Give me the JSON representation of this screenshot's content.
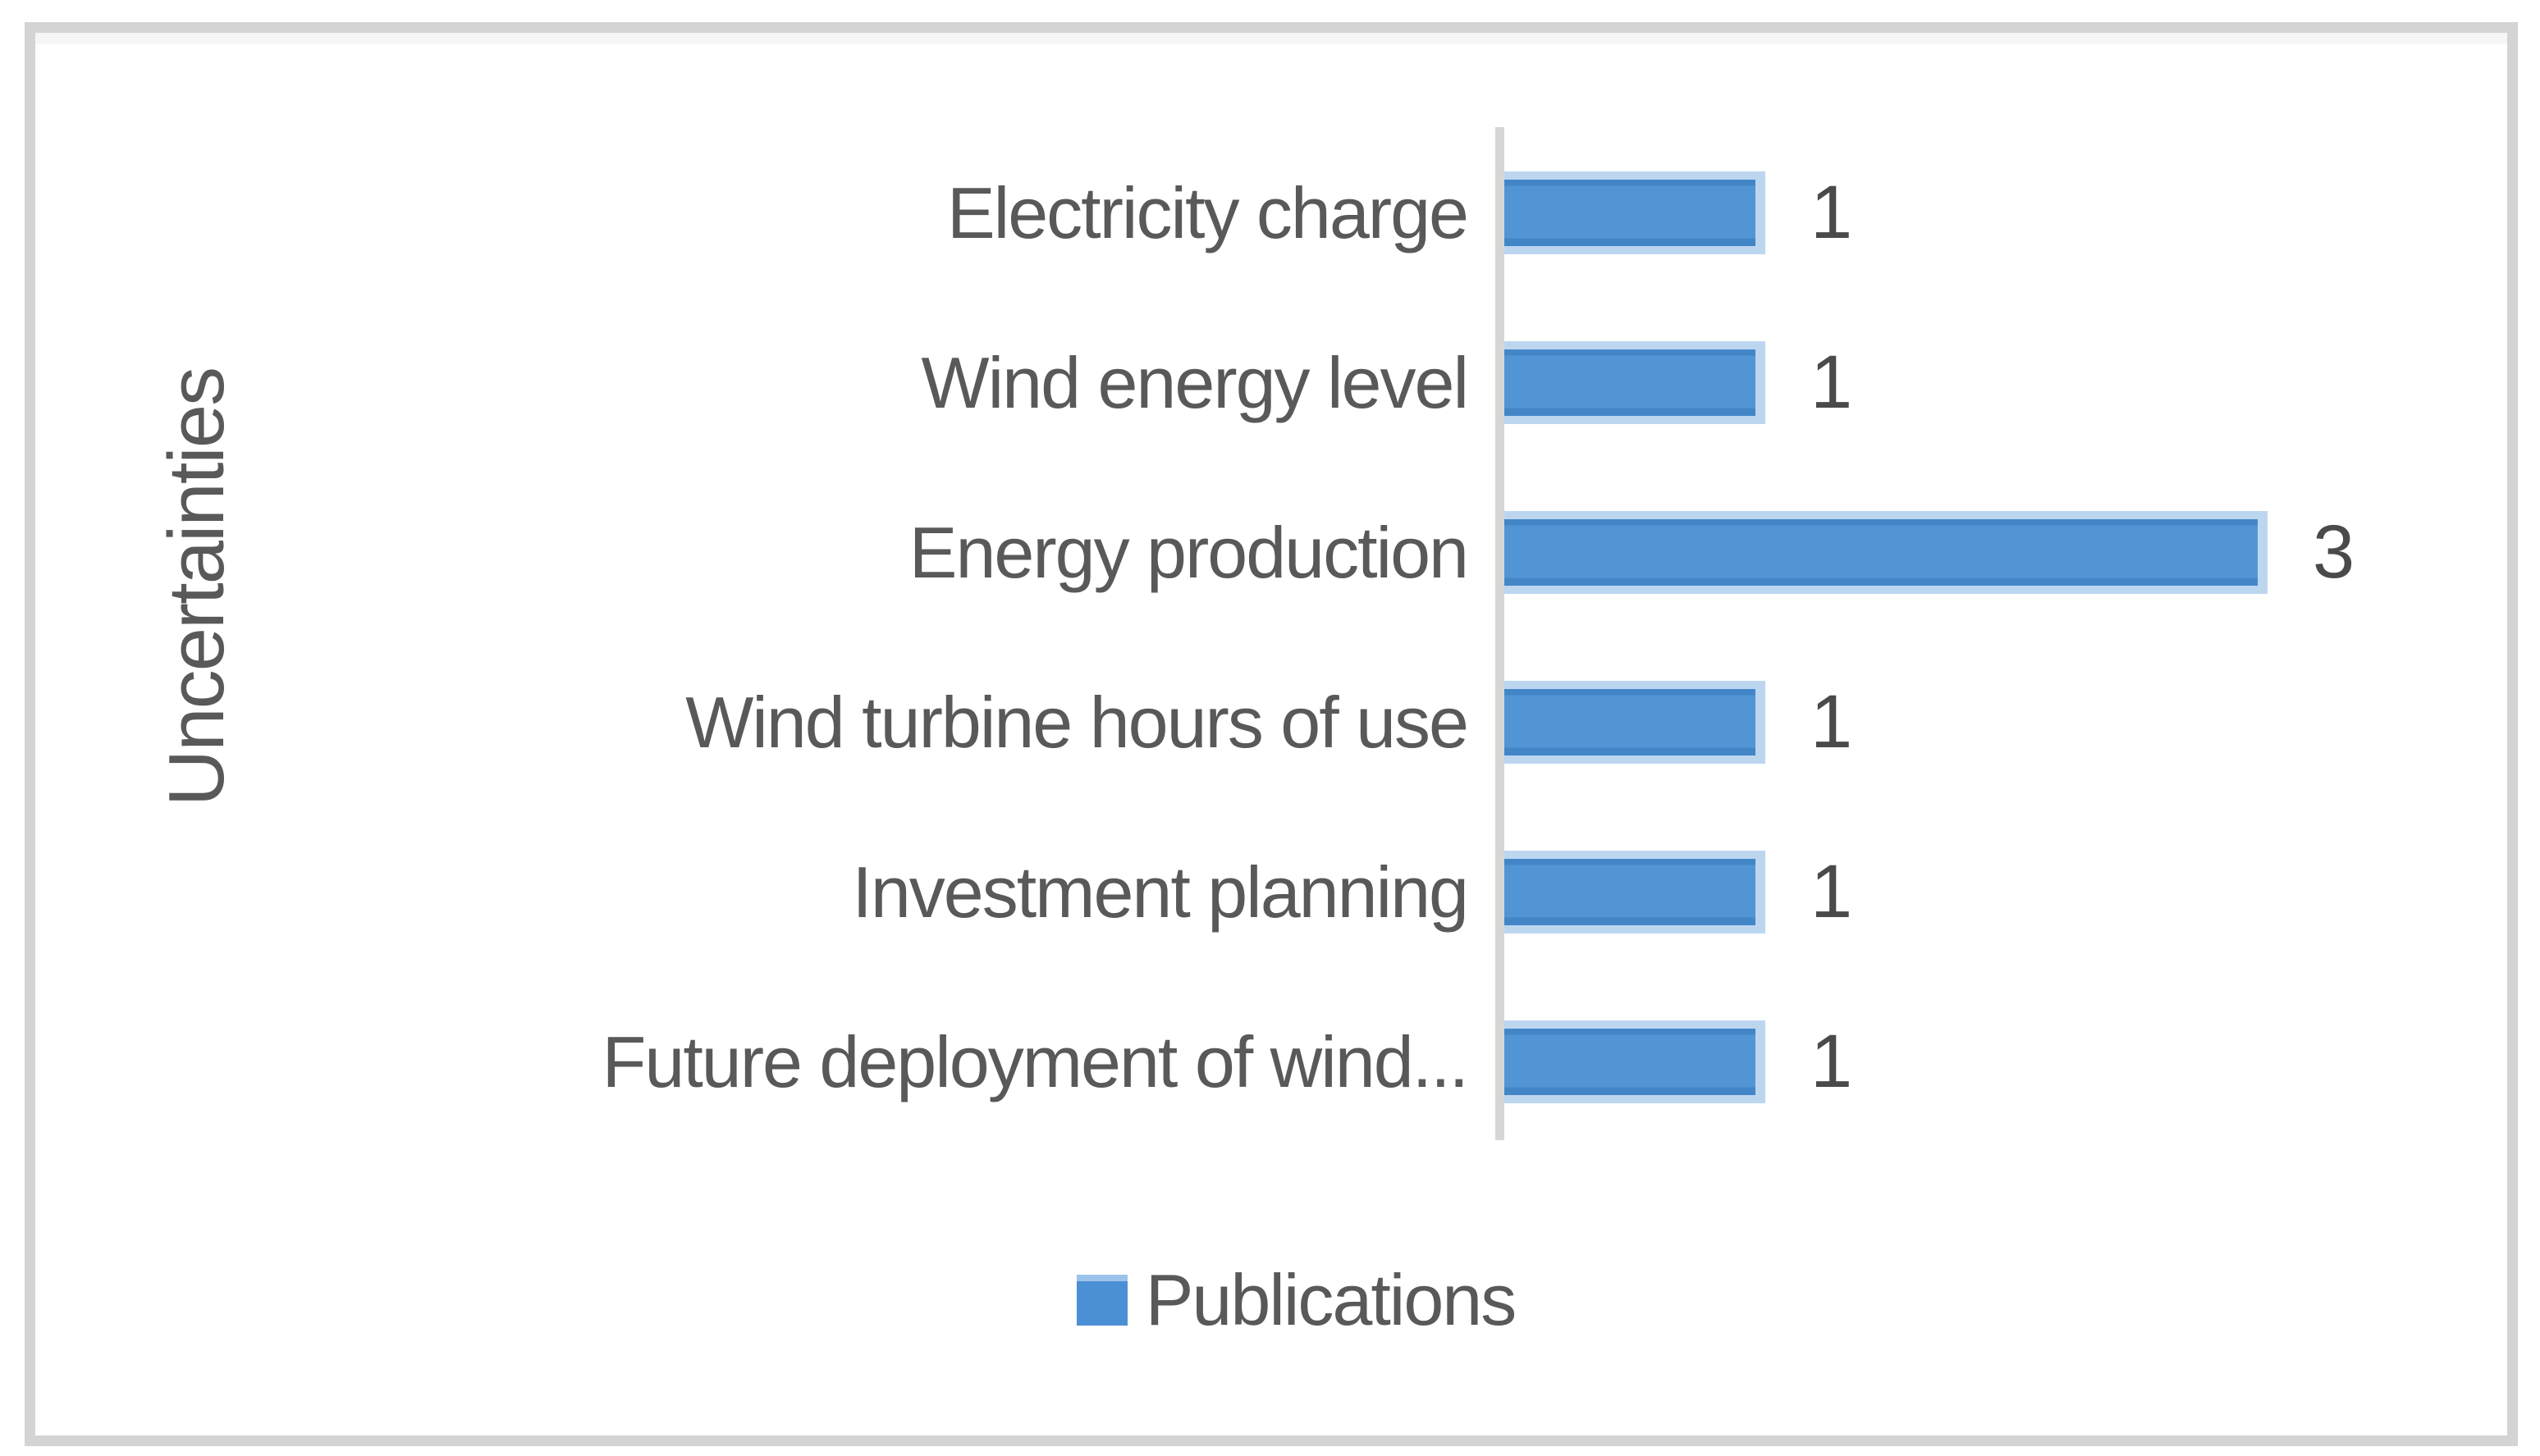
{
  "chart_data": {
    "type": "bar",
    "orientation": "horizontal",
    "title": "",
    "categories": [
      "Electricity charge",
      "Wind energy level",
      "Energy production",
      "Wind turbine hours of use",
      "Investment planning",
      "Future deployment of wind..."
    ],
    "values": [
      1,
      1,
      3,
      1,
      1,
      1
    ],
    "data_labels": [
      "1",
      "1",
      "3",
      "1",
      "1",
      "1"
    ],
    "series": [
      {
        "name": "Publications",
        "values": [
          1,
          1,
          3,
          1,
          1,
          1
        ]
      }
    ],
    "xlabel": "",
    "ylabel": "Uncertainties",
    "xlim": [
      0,
      3
    ],
    "grid": false,
    "legend_position": "bottom",
    "colors": {
      "bar_fill": "#5295d4",
      "bar_edge": "#4286c8",
      "bar_halo": "#bdd6f0",
      "axis_line": "#d6d6d4",
      "label_text": "#595959",
      "value_text": "#4a4a4a",
      "frame_border": "#d4d4d4"
    }
  },
  "axis": {
    "y_title": "Uncertainties"
  },
  "legend": {
    "label": "Publications",
    "swatch_color": "#4b90d4",
    "swatch_edge_color": "#9cc3ec"
  }
}
